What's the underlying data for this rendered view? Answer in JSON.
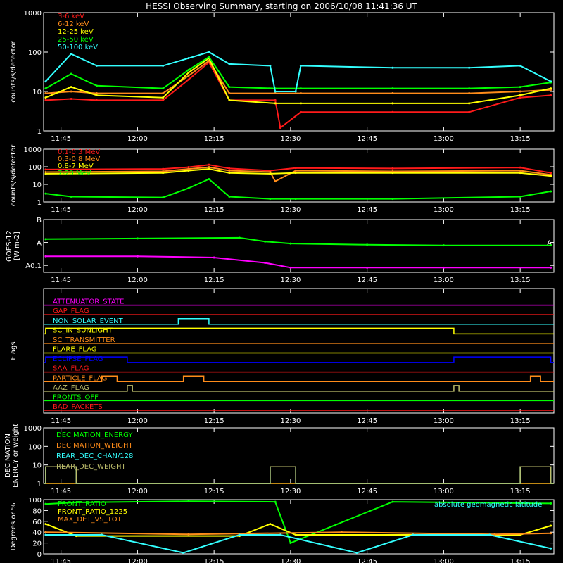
{
  "title": "HESSI Observing Summary, starting on 2006/10/08 11:41:36 UT",
  "colors": {
    "background": "#000000",
    "axes": "#ffffff",
    "red": "#ff1a1a",
    "orange": "#ff8c1a",
    "yellow": "#ffff00",
    "green": "#00ff00",
    "cyan": "#33ffff",
    "magenta": "#ff00ff",
    "blue": "#0000ff",
    "olive": "#bdbd6b"
  },
  "chart_data": [
    {
      "id": "low-energy-rates",
      "type": "line",
      "ylabel": "counts/s/detector",
      "yscale": "log",
      "ylim": [
        1,
        1000
      ],
      "ytick_labels": [
        "1",
        "10",
        "100",
        "1000"
      ],
      "xlim_minutes_utc": [
        "11:41:36",
        "13:21:36"
      ],
      "xtick_labels": [
        "11:45",
        "12:00",
        "12:15",
        "12:30",
        "12:45",
        "13:00",
        "13:15"
      ],
      "legend_position": "top-left",
      "series": [
        {
          "name": "3-6 keV",
          "color": "red",
          "x": [
            "11:42",
            "11:47",
            "11:52",
            "12:05",
            "12:10",
            "12:14",
            "12:18",
            "12:27",
            "12:28",
            "12:32",
            "12:50",
            "13:05",
            "13:15",
            "13:21"
          ],
          "y": [
            6,
            6.5,
            6,
            6,
            20,
            55,
            6,
            6,
            1.2,
            3,
            3,
            3,
            7,
            8
          ]
        },
        {
          "name": "6-12 keV",
          "color": "orange",
          "x": [
            "11:42",
            "11:47",
            "11:52",
            "12:05",
            "12:10",
            "12:14",
            "12:18",
            "12:27",
            "12:32",
            "12:50",
            "13:05",
            "13:15",
            "13:21"
          ],
          "y": [
            9,
            10,
            9,
            9,
            25,
            60,
            9,
            9,
            9,
            9,
            9,
            10,
            11
          ]
        },
        {
          "name": "12-25 keV",
          "color": "yellow",
          "x": [
            "11:42",
            "11:47",
            "11:52",
            "12:05",
            "12:10",
            "12:14",
            "12:18",
            "12:27",
            "12:32",
            "12:50",
            "13:05",
            "13:15",
            "13:21"
          ],
          "y": [
            7,
            13,
            8,
            7,
            30,
            70,
            6,
            5,
            5,
            5,
            5,
            8,
            12
          ]
        },
        {
          "name": "25-50 keV",
          "color": "green",
          "x": [
            "11:42",
            "11:47",
            "11:52",
            "12:05",
            "12:10",
            "12:14",
            "12:18",
            "12:27",
            "12:32",
            "12:50",
            "13:05",
            "13:15",
            "13:21"
          ],
          "y": [
            12,
            28,
            14,
            12,
            35,
            75,
            13,
            12,
            12,
            12,
            12,
            13,
            17
          ]
        },
        {
          "name": "50-100 keV",
          "color": "cyan",
          "x": [
            "11:42",
            "11:47",
            "11:52",
            "12:05",
            "12:10",
            "12:14",
            "12:18",
            "12:26",
            "12:27",
            "12:31",
            "12:32",
            "12:50",
            "13:05",
            "13:15",
            "13:21"
          ],
          "y": [
            18,
            90,
            45,
            45,
            70,
            100,
            50,
            45,
            10,
            10,
            45,
            40,
            40,
            45,
            18
          ]
        }
      ]
    },
    {
      "id": "high-energy-rates",
      "type": "line",
      "ylabel": "counts/s/detector",
      "yscale": "log",
      "ylim": [
        1,
        1000
      ],
      "ytick_labels": [
        "1",
        "10",
        "100",
        "1000"
      ],
      "xtick_labels": [
        "11:45",
        "12:00",
        "12:15",
        "12:30",
        "12:45",
        "13:00",
        "13:15"
      ],
      "legend_position": "top-left",
      "series": [
        {
          "name": "0.1-0.3 MeV",
          "color": "red",
          "x": [
            "11:42",
            "12:05",
            "12:10",
            "12:14",
            "12:18",
            "12:26",
            "12:31",
            "12:50",
            "13:15",
            "13:21"
          ],
          "y": [
            70,
            75,
            95,
            130,
            80,
            60,
            85,
            80,
            90,
            45
          ]
        },
        {
          "name": "0.3-0.8 MeV",
          "color": "orange",
          "x": [
            "11:42",
            "12:05",
            "12:10",
            "12:14",
            "12:18",
            "12:26",
            "12:27",
            "12:31",
            "12:50",
            "13:15",
            "13:21"
          ],
          "y": [
            50,
            55,
            75,
            95,
            60,
            50,
            15,
            60,
            55,
            60,
            35
          ]
        },
        {
          "name": "0.8-7 MeV",
          "color": "yellow",
          "x": [
            "11:42",
            "12:05",
            "12:10",
            "12:14",
            "12:18",
            "12:26",
            "12:31",
            "12:50",
            "13:15",
            "13:21"
          ],
          "y": [
            40,
            45,
            60,
            75,
            45,
            40,
            45,
            45,
            45,
            30
          ]
        },
        {
          "name": "7-20 MeV",
          "color": "green",
          "x": [
            "11:42",
            "11:47",
            "12:05",
            "12:10",
            "12:14",
            "12:18",
            "12:26",
            "12:31",
            "12:50",
            "13:15",
            "13:21"
          ],
          "y": [
            3,
            2,
            1.8,
            6,
            20,
            2,
            1.5,
            1.5,
            1.5,
            2,
            4
          ]
        }
      ]
    },
    {
      "id": "goes-flux",
      "type": "line",
      "ylabel": "GOES-12 [W m-2]",
      "yscale": "log",
      "ytick_labels": [
        "B",
        "A",
        "A0.1"
      ],
      "xtick_labels": [
        "11:45",
        "12:00",
        "12:15",
        "12:30",
        "12:45",
        "13:00",
        "13:15"
      ],
      "series": [
        {
          "color": "green",
          "x": [
            "11:42",
            "12:00",
            "12:20",
            "12:25",
            "12:30",
            "12:45",
            "13:00",
            "13:21"
          ],
          "y": [
            1.4,
            1.5,
            1.6,
            1.1,
            0.9,
            0.8,
            0.75,
            0.75
          ]
        },
        {
          "color": "magenta",
          "x": [
            "11:42",
            "12:00",
            "12:15",
            "12:25",
            "12:30",
            "12:45",
            "13:00",
            "13:21"
          ],
          "y": [
            0.25,
            0.25,
            0.22,
            0.13,
            0.08,
            0.08,
            0.08,
            0.08
          ]
        }
      ]
    },
    {
      "id": "flags",
      "type": "line",
      "ylabel": "Flags",
      "xtick_labels": [
        "11:45",
        "12:00",
        "12:15",
        "12:30",
        "12:45",
        "13:00",
        "13:15"
      ],
      "series": [
        {
          "name": "ATTENUATOR_STATE",
          "color": "magenta",
          "segments": []
        },
        {
          "name": "GAP_FLAG",
          "color": "red",
          "segments": []
        },
        {
          "name": "NON_SOLAR_EVENT",
          "color": "cyan",
          "segments": [
            [
              "12:08",
              "12:14"
            ]
          ]
        },
        {
          "name": "SC_IN_SUNLIGHT",
          "color": "yellow",
          "segments": [
            [
              "11:42",
              "13:02"
            ]
          ]
        },
        {
          "name": "SC_TRANSMITTER",
          "color": "orange",
          "segments": []
        },
        {
          "name": "FLARE_FLAG",
          "color": "yellow",
          "segments": []
        },
        {
          "name": "ECLIPSE_FLAG",
          "color": "blue",
          "segments": [
            [
              "11:42",
              "11:58"
            ],
            [
              "13:02",
              "13:21"
            ]
          ]
        },
        {
          "name": "SAA_FLAG",
          "color": "red",
          "segments": []
        },
        {
          "name": "PARTICLE_FLAG",
          "color": "orange",
          "segments": [
            [
              "11:53",
              "11:56"
            ],
            [
              "12:09",
              "12:13"
            ],
            [
              "13:17",
              "13:19"
            ]
          ]
        },
        {
          "name": "AAZ_FLAG",
          "color": "olive",
          "segments": [
            [
              "11:58",
              "11:59"
            ],
            [
              "13:02",
              "13:03"
            ]
          ]
        },
        {
          "name": "FRONTS_OFF",
          "color": "green",
          "segments": []
        },
        {
          "name": "BAD_PACKETS",
          "color": "red",
          "segments": []
        }
      ]
    },
    {
      "id": "decimation",
      "type": "line",
      "ylabel": "DECIMATION ENERGY or weight",
      "yscale": "log",
      "ylim": [
        1,
        1000
      ],
      "ytick_labels": [
        "1",
        "10",
        "100",
        "1000"
      ],
      "xtick_labels": [
        "11:45",
        "12:00",
        "12:15",
        "12:30",
        "12:45",
        "13:00",
        "13:15"
      ],
      "legend_position": "top-left",
      "series": [
        {
          "name": "DECIMATION_ENERGY",
          "color": "green",
          "segments": []
        },
        {
          "name": "DECIMATION_WEIGHT",
          "color": "orange",
          "segments": []
        },
        {
          "name": "REAR_DEC_CHAN/128",
          "color": "cyan",
          "segments": [
            [
              "11:42",
              "11:48"
            ],
            [
              "12:26",
              "12:31"
            ],
            [
              "13:15",
              "13:21"
            ]
          ]
        },
        {
          "name": "REAR_DEC_WEIGHT",
          "color": "olive",
          "segments": [
            [
              "11:42",
              "11:48"
            ],
            [
              "12:26",
              "12:31"
            ],
            [
              "13:15",
              "13:21"
            ]
          ]
        }
      ]
    },
    {
      "id": "front-ratio",
      "type": "line",
      "ylabel": "Degrees or %",
      "ylim": [
        0,
        100
      ],
      "ytick_labels": [
        "0",
        "20",
        "40",
        "60",
        "80",
        "100"
      ],
      "xtick_labels": [
        "11:45",
        "12:00",
        "12:15",
        "12:30",
        "12:45",
        "13:00",
        "13:15"
      ],
      "legend_position": "top-left",
      "annotation": "absolute geomagnetic latitude",
      "series": [
        {
          "name": "FRONT_RATIO",
          "color": "green",
          "x": [
            "11:42",
            "11:48",
            "12:10",
            "12:27",
            "12:30",
            "12:50",
            "13:21"
          ],
          "y": [
            92,
            95,
            97,
            96,
            20,
            96,
            93
          ]
        },
        {
          "name": "FRONT_RATIO_1225",
          "color": "yellow",
          "x": [
            "11:42",
            "11:48",
            "12:20",
            "12:26",
            "12:31",
            "13:15",
            "13:21"
          ],
          "y": [
            55,
            33,
            33,
            55,
            35,
            35,
            52
          ]
        },
        {
          "name": "MAX_DET_VS_TOT",
          "color": "orange",
          "x": [
            "11:42",
            "12:10",
            "12:40",
            "13:10",
            "13:21"
          ],
          "y": [
            40,
            36,
            40,
            36,
            38
          ]
        },
        {
          "name": "absolute geomagnetic latitude",
          "color": "cyan",
          "x": [
            "11:42",
            "11:53",
            "12:09",
            "12:20",
            "12:28",
            "12:43",
            "12:54",
            "13:09",
            "13:21"
          ],
          "y": [
            35,
            35,
            2,
            35,
            35,
            2,
            35,
            35,
            10
          ]
        }
      ]
    }
  ]
}
